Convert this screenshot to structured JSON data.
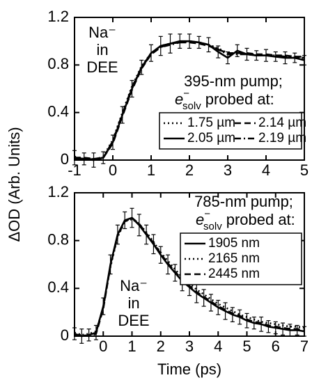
{
  "ylabel": "ΔOD (Arb. Units)",
  "chart_data": [
    {
      "type": "line",
      "annotation": [
        "Na⁻",
        "in",
        "DEE"
      ],
      "legend_title": {
        "line1": "395-nm pump;",
        "symbol": "e",
        "superscript": "−",
        "subscript": "solv",
        "rest": "probed at:"
      },
      "legend_position": "lower right",
      "legend_columns": 2,
      "xlim": [
        -1,
        5
      ],
      "xticks": [
        -1,
        0,
        1,
        2,
        3,
        4,
        5
      ],
      "ylim": [
        0,
        1.2
      ],
      "yticks": [
        0,
        0.4,
        0.8,
        1.2
      ],
      "grid": false,
      "x": [
        -1,
        -0.75,
        -0.5,
        -0.25,
        0,
        0.25,
        0.5,
        0.75,
        1,
        1.25,
        1.5,
        1.75,
        2,
        2.25,
        2.5,
        2.75,
        3,
        3.25,
        3.5,
        3.75,
        4,
        4.25,
        4.5,
        4.75,
        5
      ],
      "series": [
        {
          "name": "1.75 µm",
          "color": "#000000",
          "style": "dotted",
          "values": [
            0.03,
            0.01,
            0.0,
            0.03,
            0.17,
            0.4,
            0.62,
            0.79,
            0.9,
            0.96,
            0.98,
            0.99,
            1.0,
            0.99,
            0.97,
            0.94,
            0.9,
            0.9,
            0.89,
            0.89,
            0.88,
            0.88,
            0.87,
            0.87,
            0.86
          ]
        },
        {
          "name": "2.05 µm",
          "color": "#000000",
          "style": "solid",
          "values": [
            0.02,
            0.01,
            0.0,
            0.02,
            0.15,
            0.38,
            0.6,
            0.78,
            0.9,
            0.96,
            0.98,
            1.0,
            1.0,
            0.99,
            0.97,
            0.91,
            0.86,
            0.92,
            0.89,
            0.88,
            0.88,
            0.87,
            0.86,
            0.86,
            0.84
          ],
          "errors": [
            0.06,
            0.05,
            0.06,
            0.05,
            0.06,
            0.07,
            0.07,
            0.06,
            0.07,
            0.08,
            0.08,
            0.06,
            0.06,
            0.05,
            0.06,
            0.05,
            0.05,
            0.05,
            0.05,
            0.04,
            0.05,
            0.04,
            0.05,
            0.04,
            0.04
          ]
        },
        {
          "name": "2.14 µm",
          "color": "#000000",
          "style": "dashed",
          "values": [
            0.02,
            0.02,
            0.01,
            0.02,
            0.14,
            0.37,
            0.59,
            0.77,
            0.89,
            0.95,
            0.98,
            0.99,
            0.99,
            0.98,
            0.96,
            0.93,
            0.9,
            0.9,
            0.9,
            0.89,
            0.89,
            0.88,
            0.88,
            0.87,
            0.87
          ]
        },
        {
          "name": "2.19 µm",
          "color": "#000000",
          "style": "dashdot",
          "values": [
            0.01,
            0.0,
            0.01,
            0.02,
            0.16,
            0.39,
            0.61,
            0.78,
            0.89,
            0.95,
            0.97,
            0.99,
            1.0,
            0.99,
            0.97,
            0.93,
            0.89,
            0.89,
            0.89,
            0.88,
            0.88,
            0.88,
            0.87,
            0.86,
            0.86
          ]
        }
      ]
    },
    {
      "type": "line",
      "annotation": [
        "Na⁻",
        "in",
        "DEE"
      ],
      "legend_title": {
        "line1": "785-nm pump;",
        "symbol": "e",
        "superscript": "−",
        "subscript": "solv",
        "rest": "probed at:"
      },
      "legend_position": "upper right",
      "legend_columns": 1,
      "xlabel": "Time (ps)",
      "xlim": [
        -1,
        7
      ],
      "xticks": [
        0,
        1,
        2,
        3,
        4,
        5,
        6,
        7
      ],
      "ylim": [
        0,
        1.2
      ],
      "yticks": [
        0,
        0.4,
        0.8,
        1.2
      ],
      "grid": false,
      "x": [
        -1,
        -0.75,
        -0.5,
        -0.25,
        0,
        0.25,
        0.5,
        0.75,
        1,
        1.25,
        1.5,
        1.75,
        2,
        2.25,
        2.5,
        2.75,
        3,
        3.25,
        3.5,
        3.75,
        4,
        4.25,
        4.5,
        4.75,
        5,
        5.25,
        5.5,
        5.75,
        6,
        6.25,
        6.5,
        6.75,
        7
      ],
      "series": [
        {
          "name": "1905 nm",
          "color": "#000000",
          "style": "solid",
          "values": [
            0.02,
            0.0,
            0.01,
            0.03,
            0.25,
            0.6,
            0.85,
            0.97,
            0.99,
            0.93,
            0.85,
            0.77,
            0.68,
            0.6,
            0.53,
            0.46,
            0.41,
            0.36,
            0.32,
            0.28,
            0.24,
            0.21,
            0.18,
            0.16,
            0.13,
            0.11,
            0.1,
            0.08,
            0.07,
            0.06,
            0.05,
            0.05,
            0.04
          ],
          "errors": [
            0.05,
            0.06,
            0.05,
            0.06,
            0.07,
            0.08,
            0.08,
            0.07,
            0.08,
            0.09,
            0.08,
            0.08,
            0.07,
            0.08,
            0.07,
            0.08,
            0.07,
            0.08,
            0.07,
            0.07,
            0.06,
            0.07,
            0.06,
            0.06,
            0.06,
            0.05,
            0.06,
            0.05,
            0.05,
            0.05,
            0.05,
            0.04,
            0.04
          ]
        },
        {
          "name": "2165 nm",
          "color": "#000000",
          "style": "dotted",
          "values": [
            0.03,
            0.01,
            0.02,
            0.04,
            0.24,
            0.58,
            0.83,
            0.96,
            0.98,
            0.94,
            0.87,
            0.79,
            0.7,
            0.63,
            0.56,
            0.49,
            0.44,
            0.39,
            0.35,
            0.31,
            0.27,
            0.24,
            0.21,
            0.18,
            0.16,
            0.14,
            0.12,
            0.11,
            0.1,
            0.09,
            0.08,
            0.08,
            0.07
          ]
        },
        {
          "name": "2445 nm",
          "color": "#000000",
          "style": "dashed",
          "values": [
            0.01,
            0.01,
            0.0,
            0.02,
            0.23,
            0.59,
            0.84,
            0.96,
            0.99,
            0.94,
            0.86,
            0.78,
            0.69,
            0.61,
            0.54,
            0.47,
            0.42,
            0.37,
            0.33,
            0.29,
            0.25,
            0.22,
            0.19,
            0.17,
            0.14,
            0.12,
            0.11,
            0.09,
            0.08,
            0.07,
            0.06,
            0.06,
            0.05
          ]
        }
      ]
    }
  ]
}
